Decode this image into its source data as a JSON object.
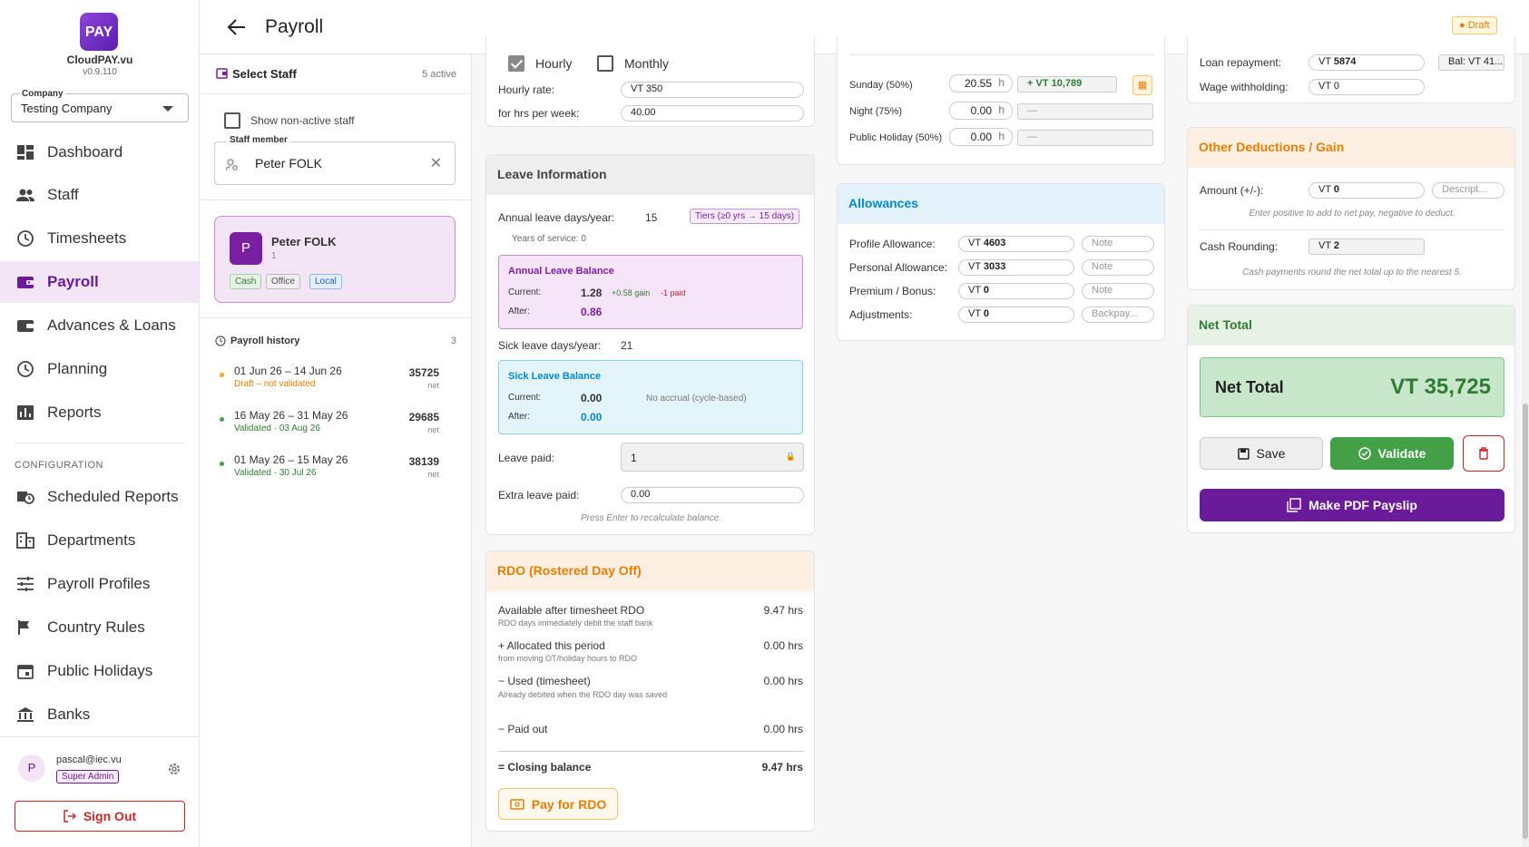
{
  "app": {
    "logo_text": "PAY",
    "name": "CloudPAY.vu",
    "version": "v0.9.110"
  },
  "company": {
    "label": "Company",
    "value": "Testing Company"
  },
  "nav": {
    "main": [
      "Dashboard",
      "Staff",
      "Timesheets",
      "Payroll",
      "Advances & Loans",
      "Planning",
      "Reports"
    ],
    "config_label": "CONFIGURATION",
    "config": [
      "Scheduled Reports",
      "Departments",
      "Payroll Profiles",
      "Country Rules",
      "Public Holidays",
      "Banks"
    ]
  },
  "user": {
    "initial": "P",
    "email": "pascal@iec.vu",
    "role": "Super Admin",
    "sign_out": "Sign Out"
  },
  "header": {
    "title": "Payroll",
    "status": "Draft"
  },
  "staff_panel": {
    "title": "Select Staff",
    "count": "5 active",
    "show_inactive": "Show non-active staff",
    "member_label": "Staff member",
    "member_value": "Peter FOLK",
    "card": {
      "initial": "P",
      "name": "Peter FOLK",
      "id": "1",
      "tags": [
        "Cash",
        "Office",
        "Local"
      ]
    },
    "history_title": "Payroll history",
    "history_count": "3",
    "history": [
      {
        "period": "01 Jun 26 – 14 Jun 26",
        "status": "Draft – not validated",
        "amount": "35725",
        "unit": "net"
      },
      {
        "period": "16 May 26 – 31 May 26",
        "status": "Validated · 03 Aug 26",
        "amount": "29685",
        "unit": "net"
      },
      {
        "period": "01 May 26 – 15 May 26",
        "status": "Validated · 30 Jul 26",
        "amount": "38139",
        "unit": "net"
      }
    ]
  },
  "pay_type": {
    "hourly": "Hourly",
    "monthly": "Monthly",
    "rate_label": "Hourly rate:",
    "rate_value": "VT 350",
    "hours_label": "for hrs per week:",
    "hours_value": "40.00"
  },
  "leave": {
    "title": "Leave Information",
    "annual_label": "Annual leave days/year:",
    "annual_value": "15",
    "tier": "Tiers (≥0 yrs → 15 days)",
    "service": "Years of service: 0",
    "annual_balance": {
      "title": "Annual Leave Balance",
      "current_label": "Current:",
      "current": "1.28",
      "gain": "+0.58 gain",
      "paid": "-1 paid",
      "after_label": "After:",
      "after": "0.86"
    },
    "sick_label": "Sick leave days/year:",
    "sick_value": "21",
    "sick_balance": {
      "title": "Sick Leave Balance",
      "current_label": "Current:",
      "current": "0.00",
      "note": "No accrual (cycle-based)",
      "after_label": "After:",
      "after": "0.00"
    },
    "paid_label": "Leave paid:",
    "paid_value": "1",
    "extra_label": "Extra leave paid:",
    "extra_value": "0.00",
    "hint": "Press Enter to recalculate balance."
  },
  "rdo": {
    "title": "RDO (Rostered Day Off)",
    "rows": [
      {
        "label": "Available after timesheet RDO",
        "sub": "RDO days immediately debit the staff bank",
        "value": "9.47 hrs"
      },
      {
        "label": "+ Allocated this period",
        "sub": "from moving OT/holiday hours to RDO",
        "value": "0.00 hrs"
      },
      {
        "label": "− Used (timesheet)",
        "sub": "Already debited when the RDO day was saved",
        "value": "0.00 hrs"
      },
      {
        "label": "− Paid out",
        "sub": "",
        "value": "0.00 hrs"
      }
    ],
    "closing_label": "= Closing balance",
    "closing_value": "9.47 hrs",
    "pay_button": "Pay for RDO"
  },
  "overtime": {
    "rows": [
      {
        "label": "Sunday (50%)",
        "hours": "20.55",
        "unit": "h",
        "amount": "+ VT 10,789"
      },
      {
        "label": "Night (75%)",
        "hours": "0.00",
        "unit": "h",
        "amount": "—"
      },
      {
        "label": "Public Holiday (50%)",
        "hours": "0.00",
        "unit": "h",
        "amount": "—"
      }
    ]
  },
  "allowances": {
    "title": "Allowances",
    "rows": [
      {
        "label": "Profile Allowance:",
        "prefix": "VT",
        "value": "4603",
        "note": "Note"
      },
      {
        "label": "Personal Allowance:",
        "prefix": "VT",
        "value": "3033",
        "note": "Note"
      },
      {
        "label": "Premium / Bonus:",
        "prefix": "VT",
        "value": "0",
        "note": "Note"
      },
      {
        "label": "Adjustments:",
        "prefix": "VT",
        "value": "0",
        "note": "Backpay..."
      }
    ]
  },
  "deductions": {
    "loan_label": "Loan repayment:",
    "loan_prefix": "VT",
    "loan_value": "5874",
    "loan_balance": "Bal: VT 41...",
    "wage_label": "Wage withholding:",
    "wage_value": "VT 0"
  },
  "other": {
    "title": "Other Deductions / Gain",
    "amount_label": "Amount (+/-):",
    "amount_prefix": "VT",
    "amount_value": "0",
    "desc_placeholder": "Descript...",
    "amount_hint": "Enter positive to add to net pay, negative to deduct.",
    "rounding_label": "Cash Rounding:",
    "rounding_prefix": "VT",
    "rounding_value": "2",
    "rounding_hint": "Cash payments round the net total up to the nearest 5."
  },
  "net": {
    "title": "Net Total",
    "label": "Net Total",
    "value": "VT 35,725",
    "save": "Save",
    "validate": "Validate",
    "pdf": "Make PDF Payslip"
  }
}
